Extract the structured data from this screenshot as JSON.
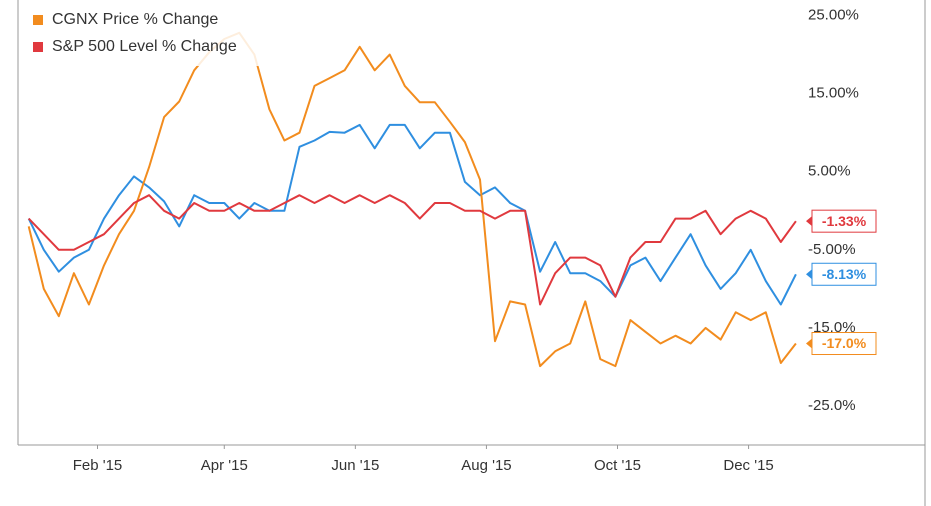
{
  "chart_data": {
    "type": "line",
    "x": [
      0,
      7,
      14,
      21,
      28,
      35,
      42,
      49,
      56,
      63,
      70,
      77,
      84,
      91,
      98,
      105,
      112,
      119,
      126,
      133,
      140,
      147,
      154,
      161,
      168,
      175,
      182,
      189,
      196,
      203,
      210,
      217,
      224,
      231,
      238,
      245,
      252,
      259,
      266,
      273,
      280,
      287,
      294,
      301,
      308,
      315,
      322,
      329,
      336,
      343,
      350,
      357
    ],
    "xlim": [
      -5,
      358
    ],
    "xticks": [
      {
        "value": 32,
        "label": "Feb '15"
      },
      {
        "value": 91,
        "label": "Apr '15"
      },
      {
        "value": 152,
        "label": "Jun '15"
      },
      {
        "value": 213,
        "label": "Aug '15"
      },
      {
        "value": 274,
        "label": "Oct '15"
      },
      {
        "value": 335,
        "label": "Dec '15"
      }
    ],
    "ylim": [
      -30,
      27
    ],
    "yticks": [
      {
        "value": 25,
        "label": "25.00%"
      },
      {
        "value": 15,
        "label": "15.00%"
      },
      {
        "value": 5,
        "label": "5.00%"
      },
      {
        "value": -5,
        "label": "-5.00%"
      },
      {
        "value": -15,
        "label": "-15.0%"
      },
      {
        "value": -25,
        "label": "-25.0%"
      }
    ],
    "legend": "upper-left",
    "series": [
      {
        "color": "#2f8fe0",
        "end_label": "-8.13%",
        "values": [
          -1,
          -5,
          -7.8,
          -6,
          -5,
          -1,
          2,
          4.4,
          3,
          1.2,
          -2,
          2,
          1,
          1,
          -1,
          1,
          0,
          0,
          8.2,
          9,
          10.1,
          10,
          11,
          8,
          11,
          11,
          8,
          10,
          10,
          3.7,
          2,
          3,
          1,
          0,
          -7.8,
          -4,
          -8,
          -8,
          -9,
          -11,
          -7,
          -6,
          -9,
          -6,
          -3,
          -7,
          -10,
          -8,
          -5,
          -9,
          -12,
          -8.13
        ]
      },
      {
        "name": "CGNX Price % Change",
        "color": "#f28c1e",
        "end_label": "-17.0%",
        "values": [
          -2,
          -10,
          -13.5,
          -8,
          -12,
          -7,
          -3,
          0,
          5.6,
          12,
          14,
          18,
          20.3,
          22,
          22.8,
          20,
          13,
          9,
          10,
          16,
          17,
          18,
          21,
          18,
          20,
          16,
          13.9,
          13.9,
          11.4,
          8.8,
          4,
          -16.7,
          -11.6,
          -12,
          -19.9,
          -18,
          -17,
          -11.6,
          -19,
          -19.9,
          -14,
          -15.5,
          -17,
          -16,
          -17,
          -15,
          -16.5,
          -13,
          -14,
          -13,
          -19.5,
          -17.0
        ]
      },
      {
        "name": "S&P 500 Level % Change",
        "color": "#e0393e",
        "end_label": "-1.33%",
        "values": [
          -1,
          -3,
          -5,
          -5,
          -4,
          -3,
          -1,
          1,
          2,
          0,
          -1,
          1,
          0,
          0,
          1,
          0,
          0,
          1,
          2,
          1,
          2,
          1,
          2,
          1,
          2,
          1,
          -1,
          1,
          1,
          0,
          0,
          -1,
          0,
          0,
          -12,
          -8,
          -6,
          -6,
          -7,
          -11,
          -6,
          -4,
          -4,
          -1,
          -1,
          0,
          -3,
          -1,
          0,
          -1,
          -4,
          -1.33
        ]
      }
    ]
  }
}
